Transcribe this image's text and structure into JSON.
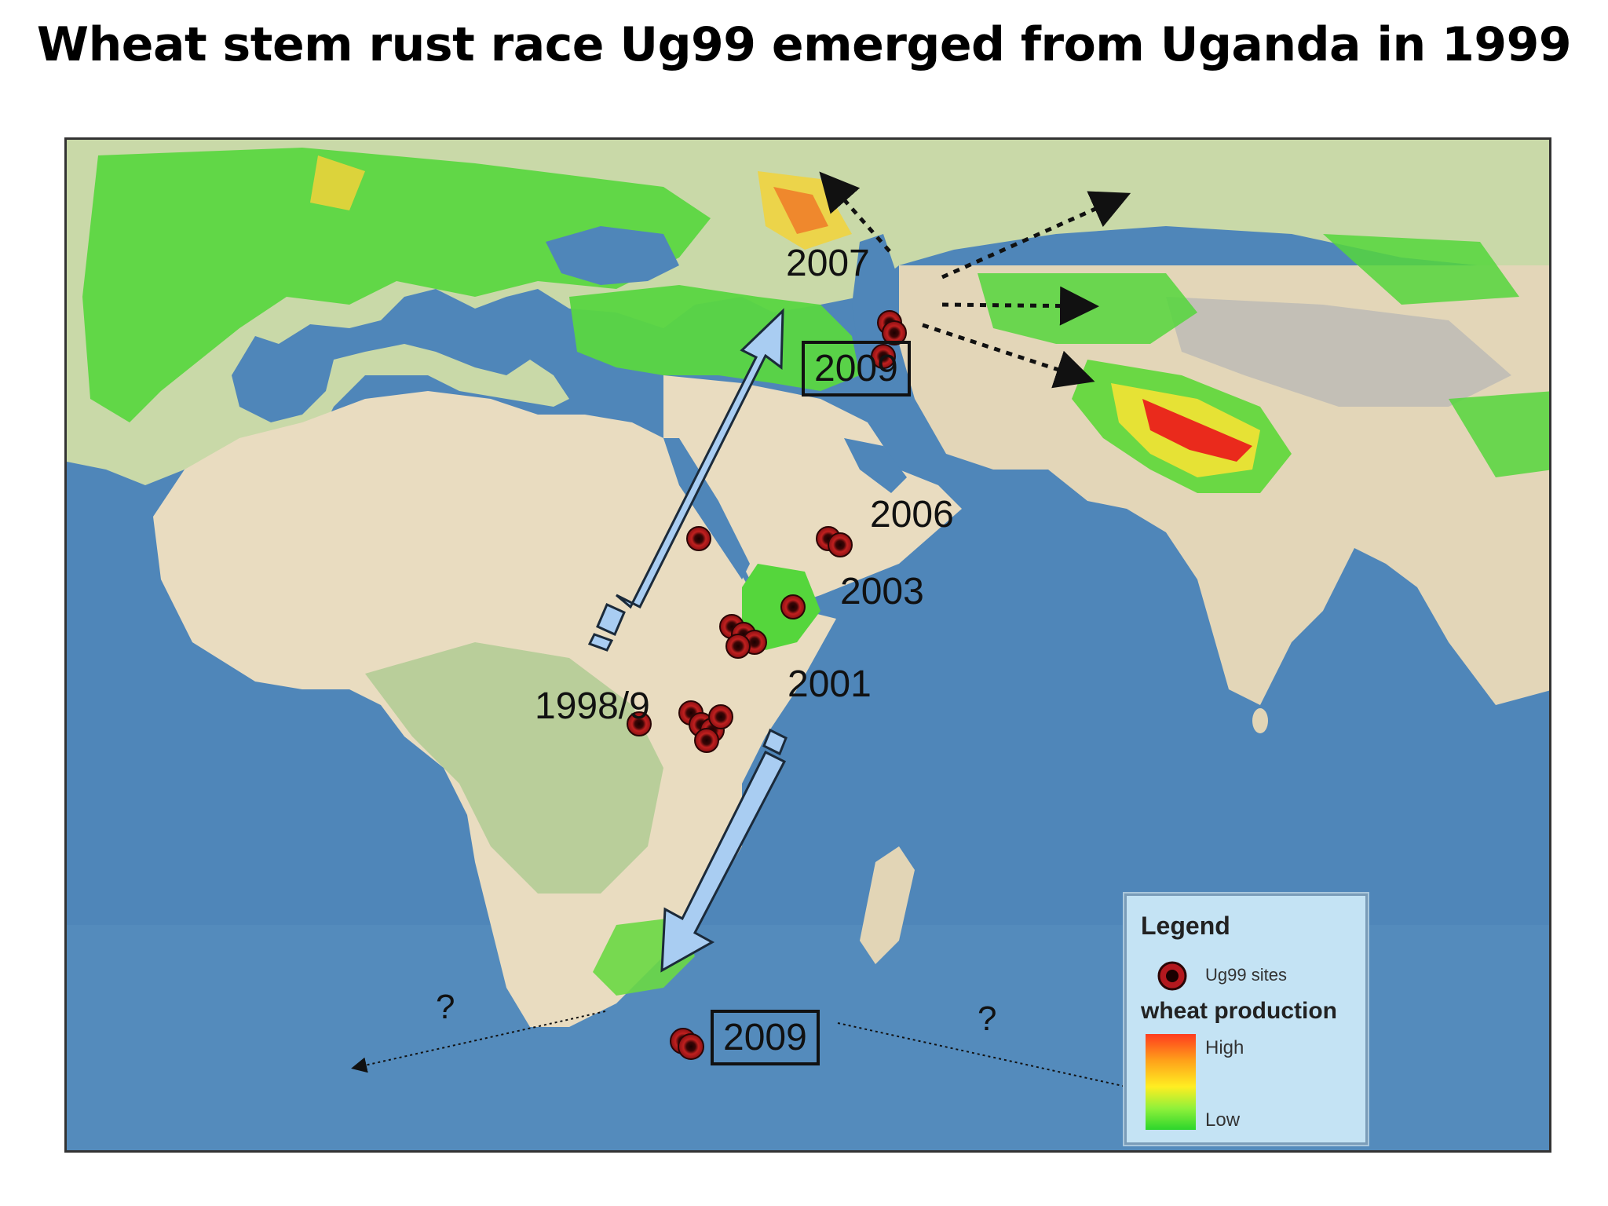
{
  "title": "Wheat stem rust race Ug99 emerged from Uganda in 1999",
  "map": {
    "year_labels": [
      {
        "id": "y1998",
        "text": "1998/9",
        "boxed": false
      },
      {
        "id": "y2001",
        "text": "2001",
        "boxed": false
      },
      {
        "id": "y2003",
        "text": "2003",
        "boxed": false
      },
      {
        "id": "y2006",
        "text": "2006",
        "boxed": false
      },
      {
        "id": "y2007",
        "text": "2007",
        "boxed": false
      },
      {
        "id": "y2009n",
        "text": "2009",
        "boxed": true
      },
      {
        "id": "y2009s",
        "text": "2009",
        "boxed": true
      }
    ],
    "unknown_markers": [
      "?",
      "?"
    ],
    "colors": {
      "ocean": "#4f86b9",
      "land": "#e9dcc0",
      "arrow_fill": "#a9cdf2",
      "site_red": "#b3181e",
      "site_dark": "#2a0505"
    }
  },
  "legend": {
    "title": "Legend",
    "site_label": "Ug99 sites",
    "production_title": "wheat production",
    "high_label": "High",
    "low_label": "Low"
  }
}
